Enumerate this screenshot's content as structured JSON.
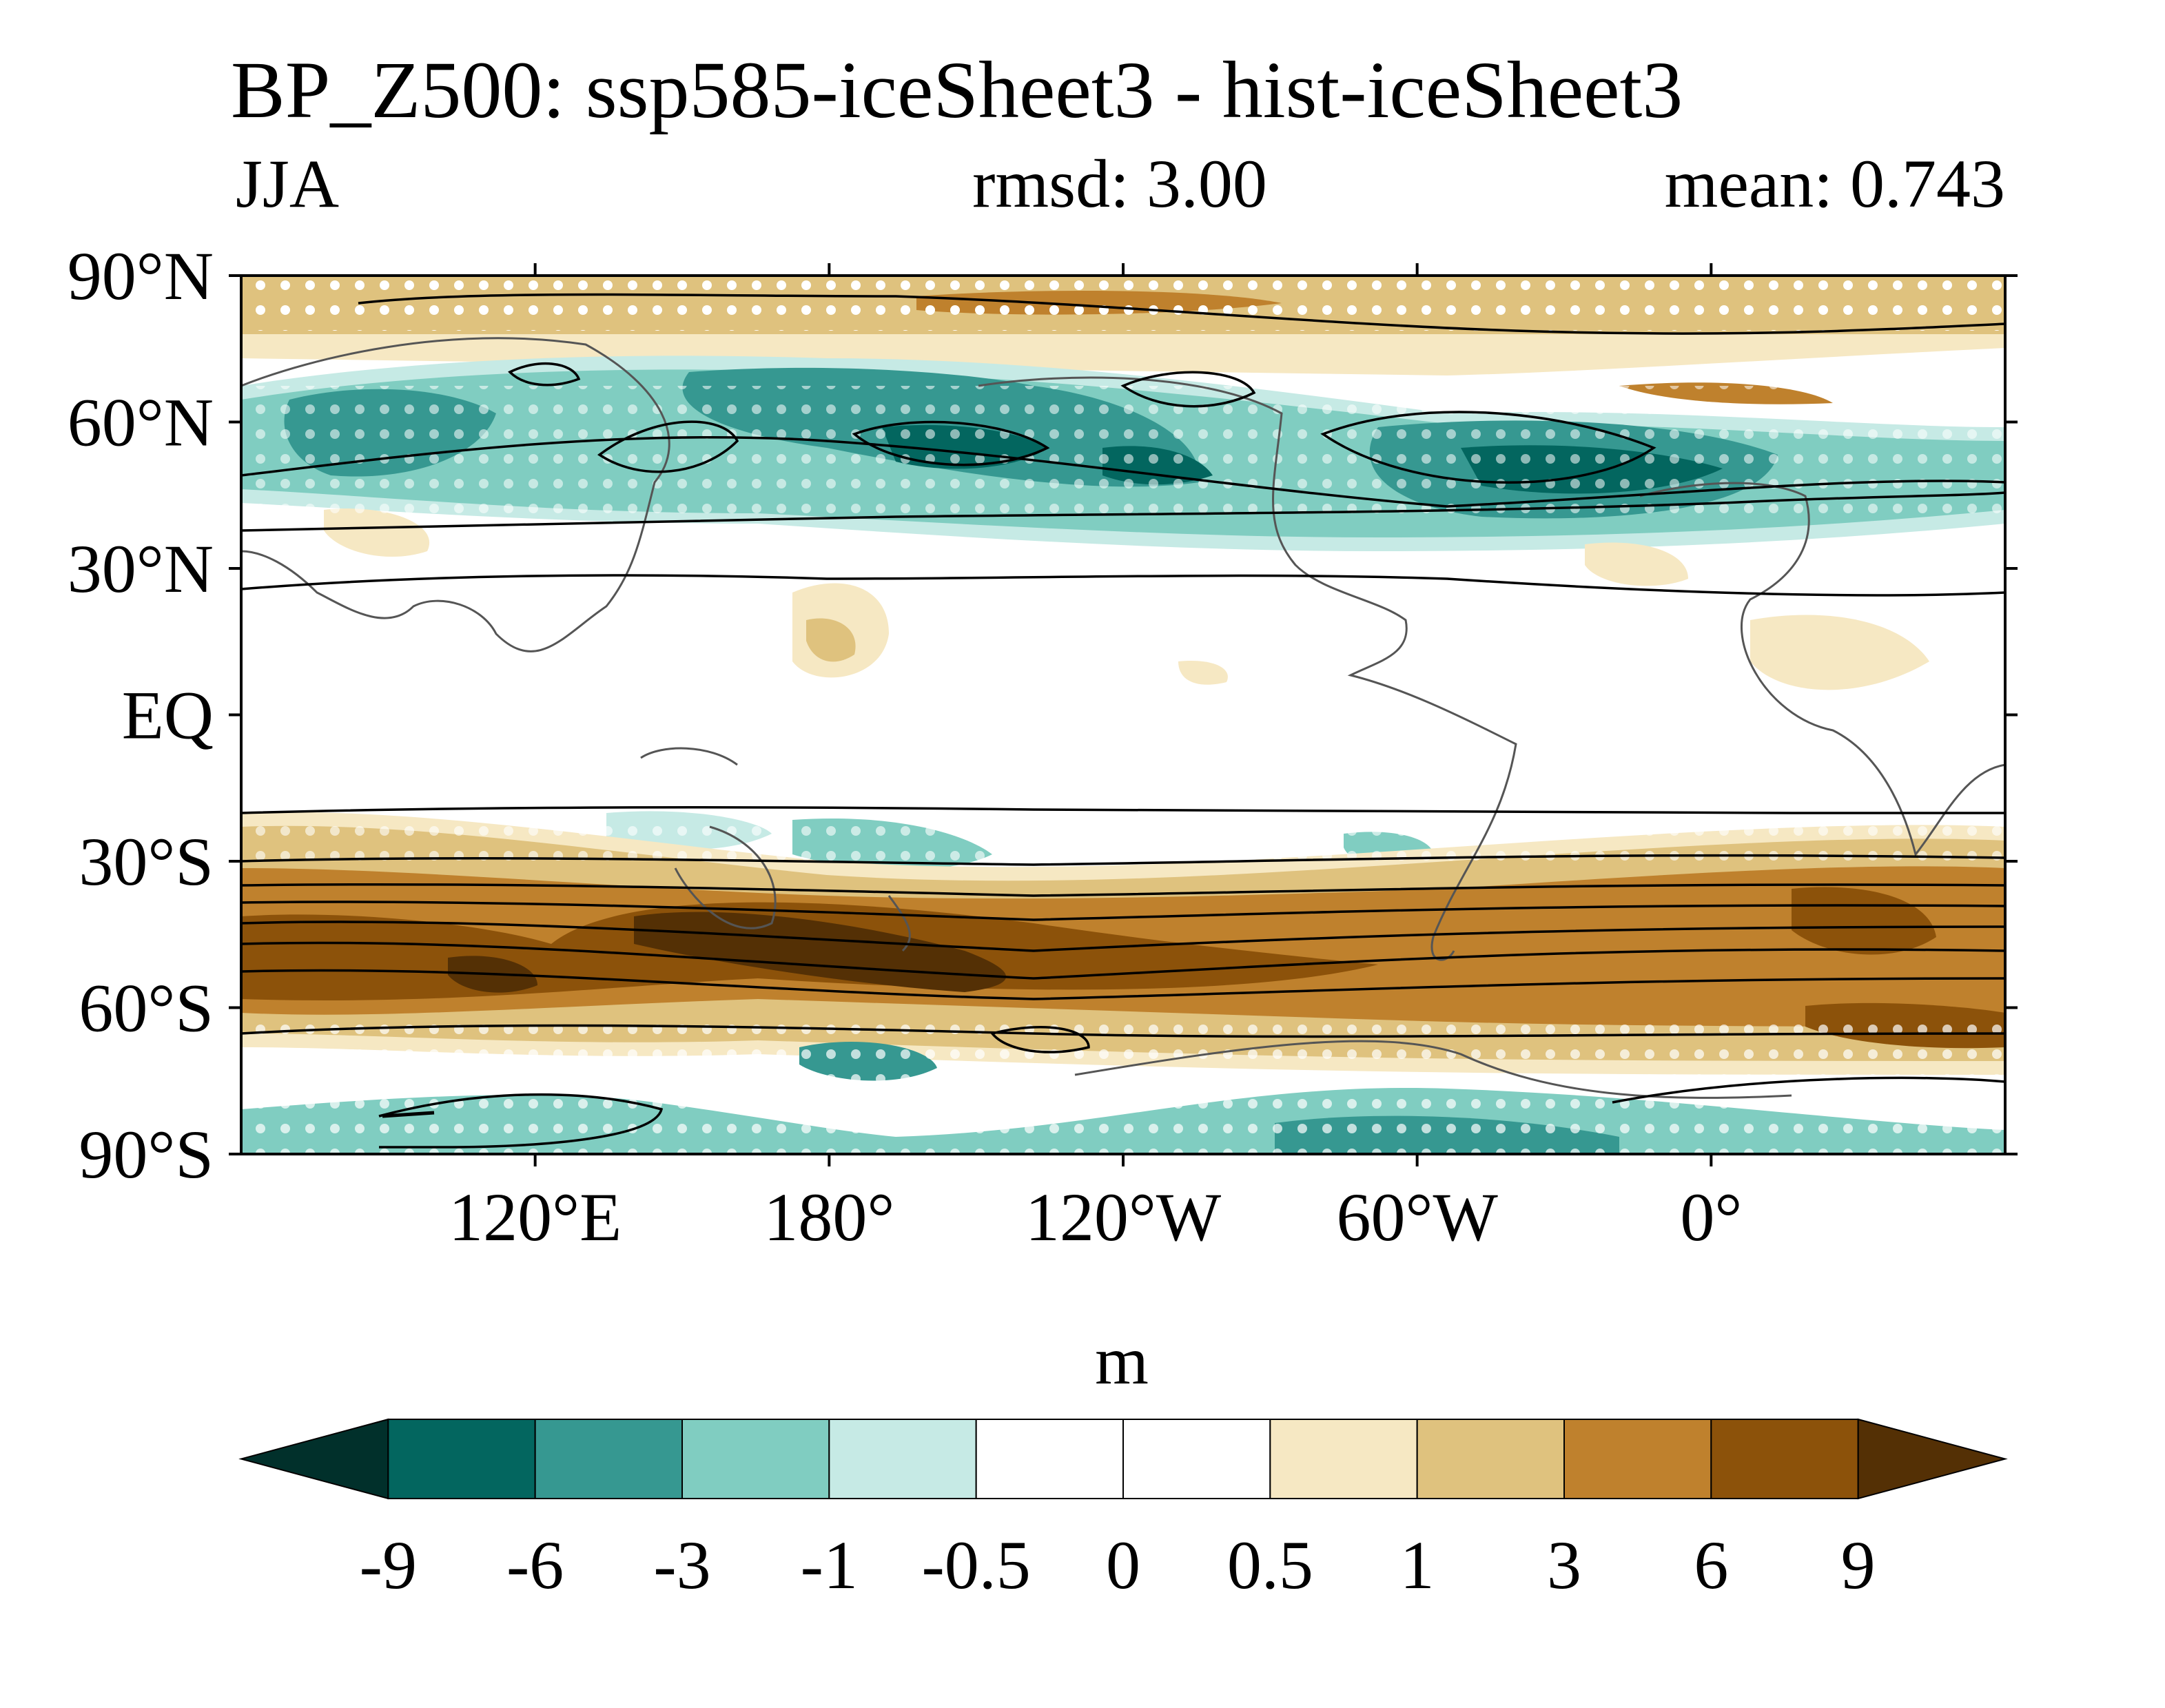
{
  "title": "BP_Z500: ssp585-iceSheet3 - hist-iceSheet3",
  "subtitle": {
    "left": "JJA",
    "center": "rmsd: 3.00",
    "right": "mean: 0.743"
  },
  "map": {
    "projection": "cylindrical-equidistant",
    "lon_range": [
      60,
      420
    ],
    "lat_range": [
      -90,
      90
    ],
    "lat_ticks": [
      {
        "value": 90,
        "label": "90°N"
      },
      {
        "value": 60,
        "label": "60°N"
      },
      {
        "value": 30,
        "label": "30°N"
      },
      {
        "value": 0,
        "label": "EQ"
      },
      {
        "value": -30,
        "label": "30°S"
      },
      {
        "value": -60,
        "label": "60°S"
      },
      {
        "value": -90,
        "label": "90°S"
      }
    ],
    "lon_ticks": [
      {
        "value": 120,
        "label": "120°E"
      },
      {
        "value": 180,
        "label": "180°"
      },
      {
        "value": 240,
        "label": "120°W"
      },
      {
        "value": 300,
        "label": "60°W"
      },
      {
        "value": 360,
        "label": "0°"
      }
    ],
    "features": [
      "filled-contours",
      "line-contours",
      "stippling",
      "coastlines"
    ]
  },
  "colorbar": {
    "units": "m",
    "levels": [
      "-9",
      "-6",
      "-3",
      "-1",
      "-0.5",
      "0",
      "0.5",
      "1",
      "3",
      "6",
      "9"
    ],
    "colors": [
      "#01302b",
      "#03665f",
      "#369891",
      "#80cdc1",
      "#c6eae5",
      "#ffffff",
      "#ffffff",
      "#f6e8c3",
      "#dfc27e",
      "#bf812d",
      "#8c520a",
      "#543005"
    ],
    "extend": "both"
  }
}
